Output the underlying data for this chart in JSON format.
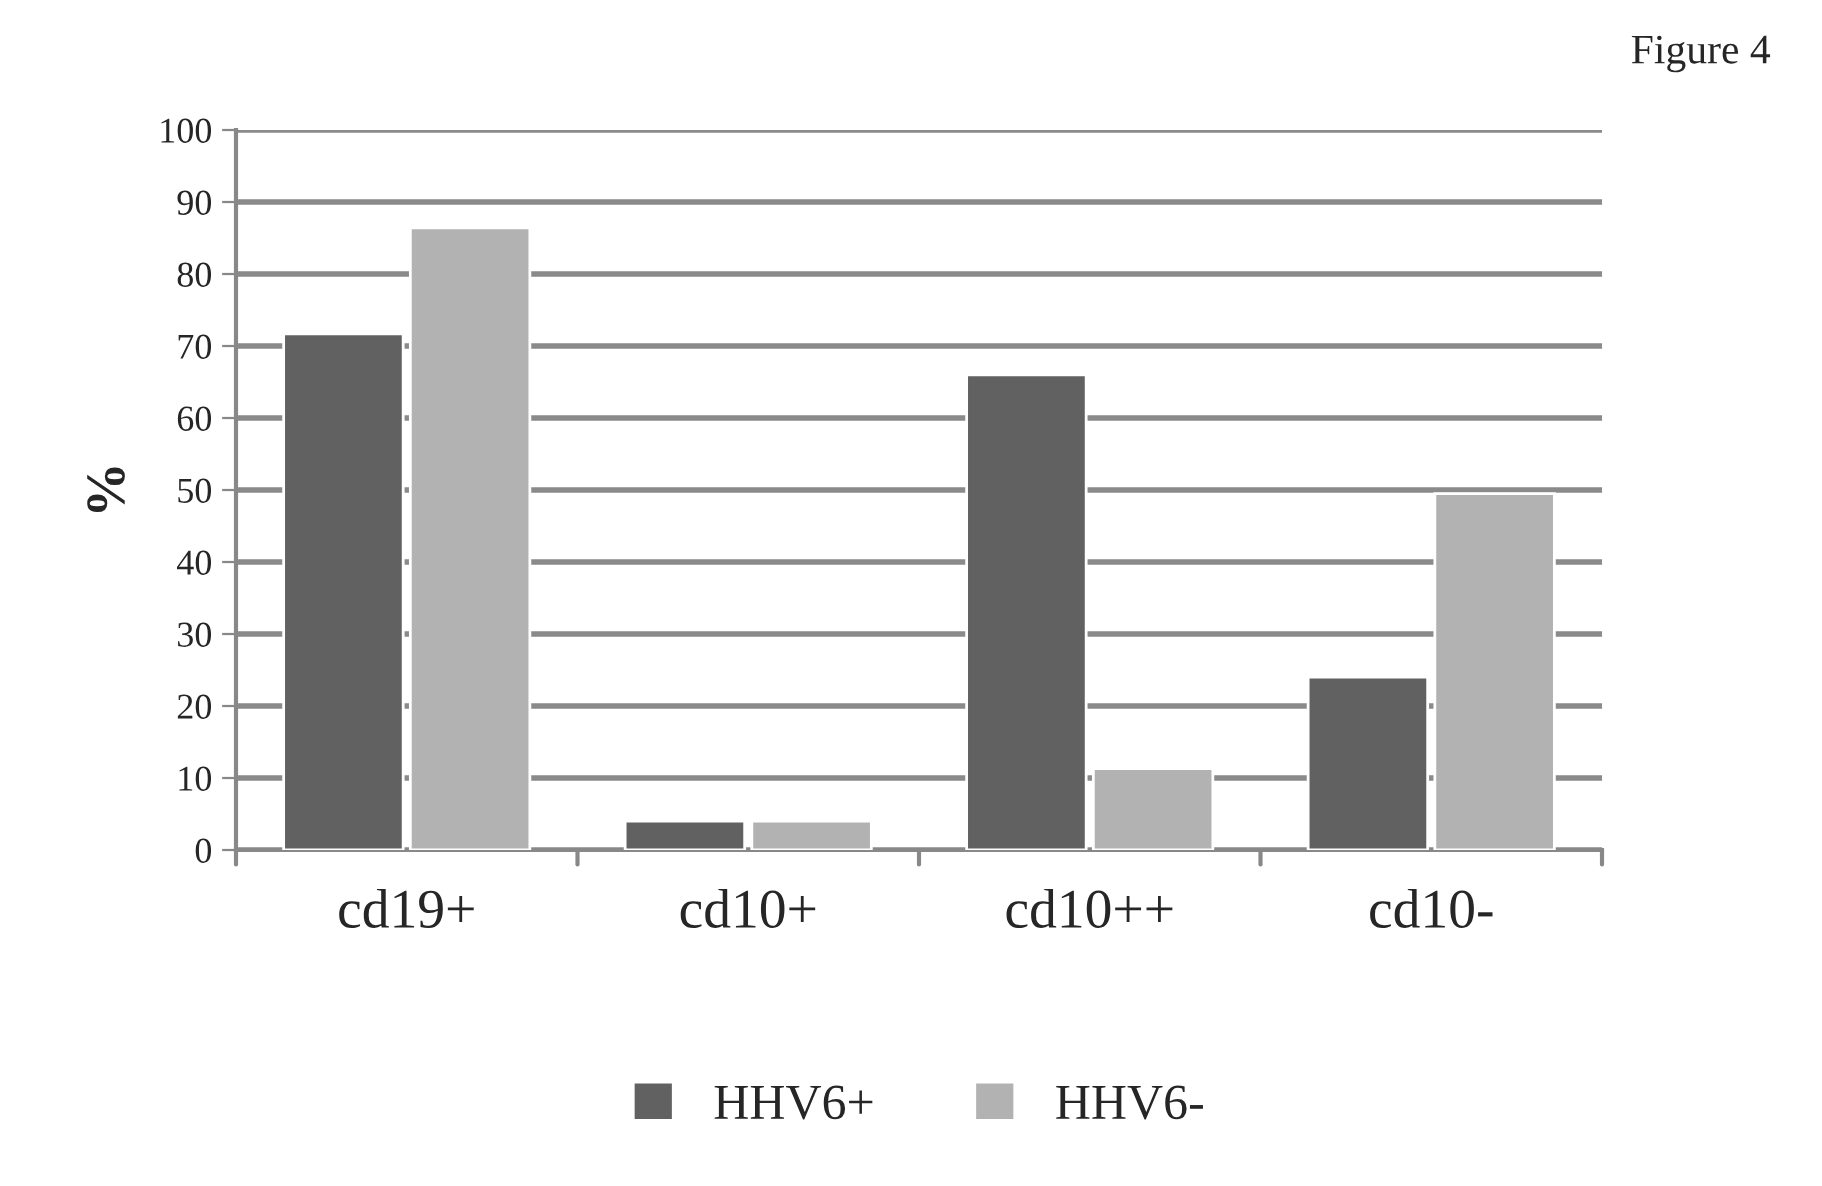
{
  "chart_data": {
    "type": "bar",
    "ylabel": "%",
    "categories": [
      "cd19+",
      "cd10+",
      "cd10++",
      "cd10-"
    ],
    "series": [
      {
        "name": "HHV6+",
        "color": "#616161",
        "values": [
          71.7,
          4,
          66,
          24
        ]
      },
      {
        "name": "HHV6-",
        "color": "#b2b2b2",
        "values": [
          86.4,
          4,
          11.3,
          49.5
        ]
      }
    ],
    "ylim": [
      0,
      100
    ],
    "yticks": [
      0,
      10,
      20,
      30,
      40,
      50,
      60,
      70,
      80,
      90,
      100
    ],
    "grid": "y",
    "legend": "bottom",
    "annotations": [
      "Figure 4"
    ]
  }
}
